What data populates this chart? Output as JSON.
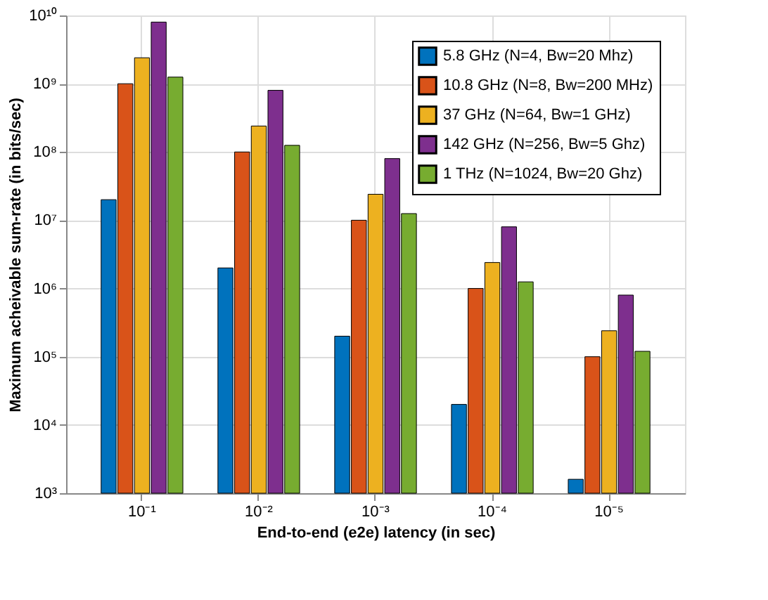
{
  "chart_data": {
    "type": "bar",
    "xlabel": "End-to-end (e2e) latency (in sec)",
    "ylabel": "Maximum acheivable sum-rate (in bits/sec)",
    "categories": [
      "10⁻¹",
      "10⁻²",
      "10⁻³",
      "10⁻⁴",
      "10⁻⁵"
    ],
    "series": [
      {
        "name": "5.8 GHz (N=4, Bw=20 Mhz)",
        "color": "#0072bd",
        "values": [
          20000000.0,
          2000000.0,
          200000.0,
          20000.0,
          1600.0
        ]
      },
      {
        "name": "10.8 GHz (N=8, Bw=200 MHz)",
        "color": "#d95319",
        "values": [
          1000000000.0,
          100000000.0,
          10000000.0,
          1000000.0,
          100000.0
        ]
      },
      {
        "name": "37 GHz (N=64, Bw=1 GHz)",
        "color": "#edb120",
        "values": [
          2400000000.0,
          240000000.0,
          24000000.0,
          2400000.0,
          240000.0
        ]
      },
      {
        "name": "142 GHz (N=256, Bw=5 Ghz)",
        "color": "#7e2f8e",
        "values": [
          8000000000.0,
          800000000.0,
          80000000.0,
          8000000.0,
          800000.0
        ]
      },
      {
        "name": "1 THz (N=1024, Bw=20 Ghz)",
        "color": "#77ac30",
        "values": [
          1250000000.0,
          125000000.0,
          12500000.0,
          1250000.0,
          120000.0
        ]
      }
    ],
    "log": "y",
    "ylim": [
      1000,
      10000000000
    ],
    "yticks": [
      {
        "value": 1000,
        "label": "10³"
      },
      {
        "value": 10000,
        "label": "10⁴"
      },
      {
        "value": 100000,
        "label": "10⁵"
      },
      {
        "value": 1000000,
        "label": "10⁶"
      },
      {
        "value": 10000000,
        "label": "10⁷"
      },
      {
        "value": 100000000,
        "label": "10⁸"
      },
      {
        "value": 1000000000,
        "label": "10⁹"
      },
      {
        "value": 10000000000,
        "label": "10¹⁰"
      }
    ],
    "grid": true,
    "legend": "top right"
  }
}
